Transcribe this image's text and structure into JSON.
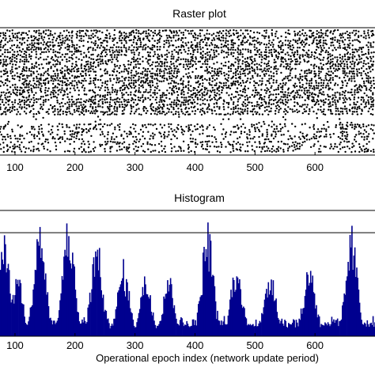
{
  "figure_colors": {
    "spike": "#000000",
    "bar_fill": "#00008f",
    "bar_edge": "#000080",
    "reference_line": "#000000"
  },
  "chart_data": [
    {
      "type": "scatter",
      "title": "Raster plot",
      "xlabel": "",
      "ylabel": "",
      "xlim": [
        75,
        700
      ],
      "xticks": [
        100,
        200,
        300,
        400,
        500,
        600
      ],
      "ylim": [
        0,
        100
      ],
      "grid": false,
      "legend": "none",
      "note_pattern": "dense black spike dots; top band dense with blocky patterns, bottom band sparser, white gap between",
      "bands": [
        {
          "y_range": [
            0,
            10
          ],
          "density": "medium"
        },
        {
          "y_range": [
            11,
            24
          ],
          "density": "medium"
        },
        {
          "y_range": [
            25,
            30
          ],
          "density": "sparse"
        },
        {
          "y_range": [
            31,
            100
          ],
          "density": "high"
        }
      ]
    },
    {
      "type": "bar",
      "title": "Histogram",
      "xlabel": "Operational epoch index (network update period)",
      "ylabel": "",
      "xlim": [
        75,
        700
      ],
      "xticks": [
        100,
        200,
        300,
        400,
        500,
        600
      ],
      "ylim": [
        0,
        120
      ],
      "threshold": 100,
      "grid": false,
      "legend": "none",
      "peaks": [
        {
          "x": 80,
          "value": 108
        },
        {
          "x": 103,
          "value": 62
        },
        {
          "x": 140,
          "value": 114
        },
        {
          "x": 188,
          "value": 118
        },
        {
          "x": 235,
          "value": 92
        },
        {
          "x": 280,
          "value": 70
        },
        {
          "x": 317,
          "value": 58
        },
        {
          "x": 355,
          "value": 60
        },
        {
          "x": 420,
          "value": 112
        },
        {
          "x": 468,
          "value": 68
        },
        {
          "x": 525,
          "value": 65
        },
        {
          "x": 590,
          "value": 72
        },
        {
          "x": 660,
          "value": 104
        }
      ],
      "baseline": 12
    }
  ]
}
